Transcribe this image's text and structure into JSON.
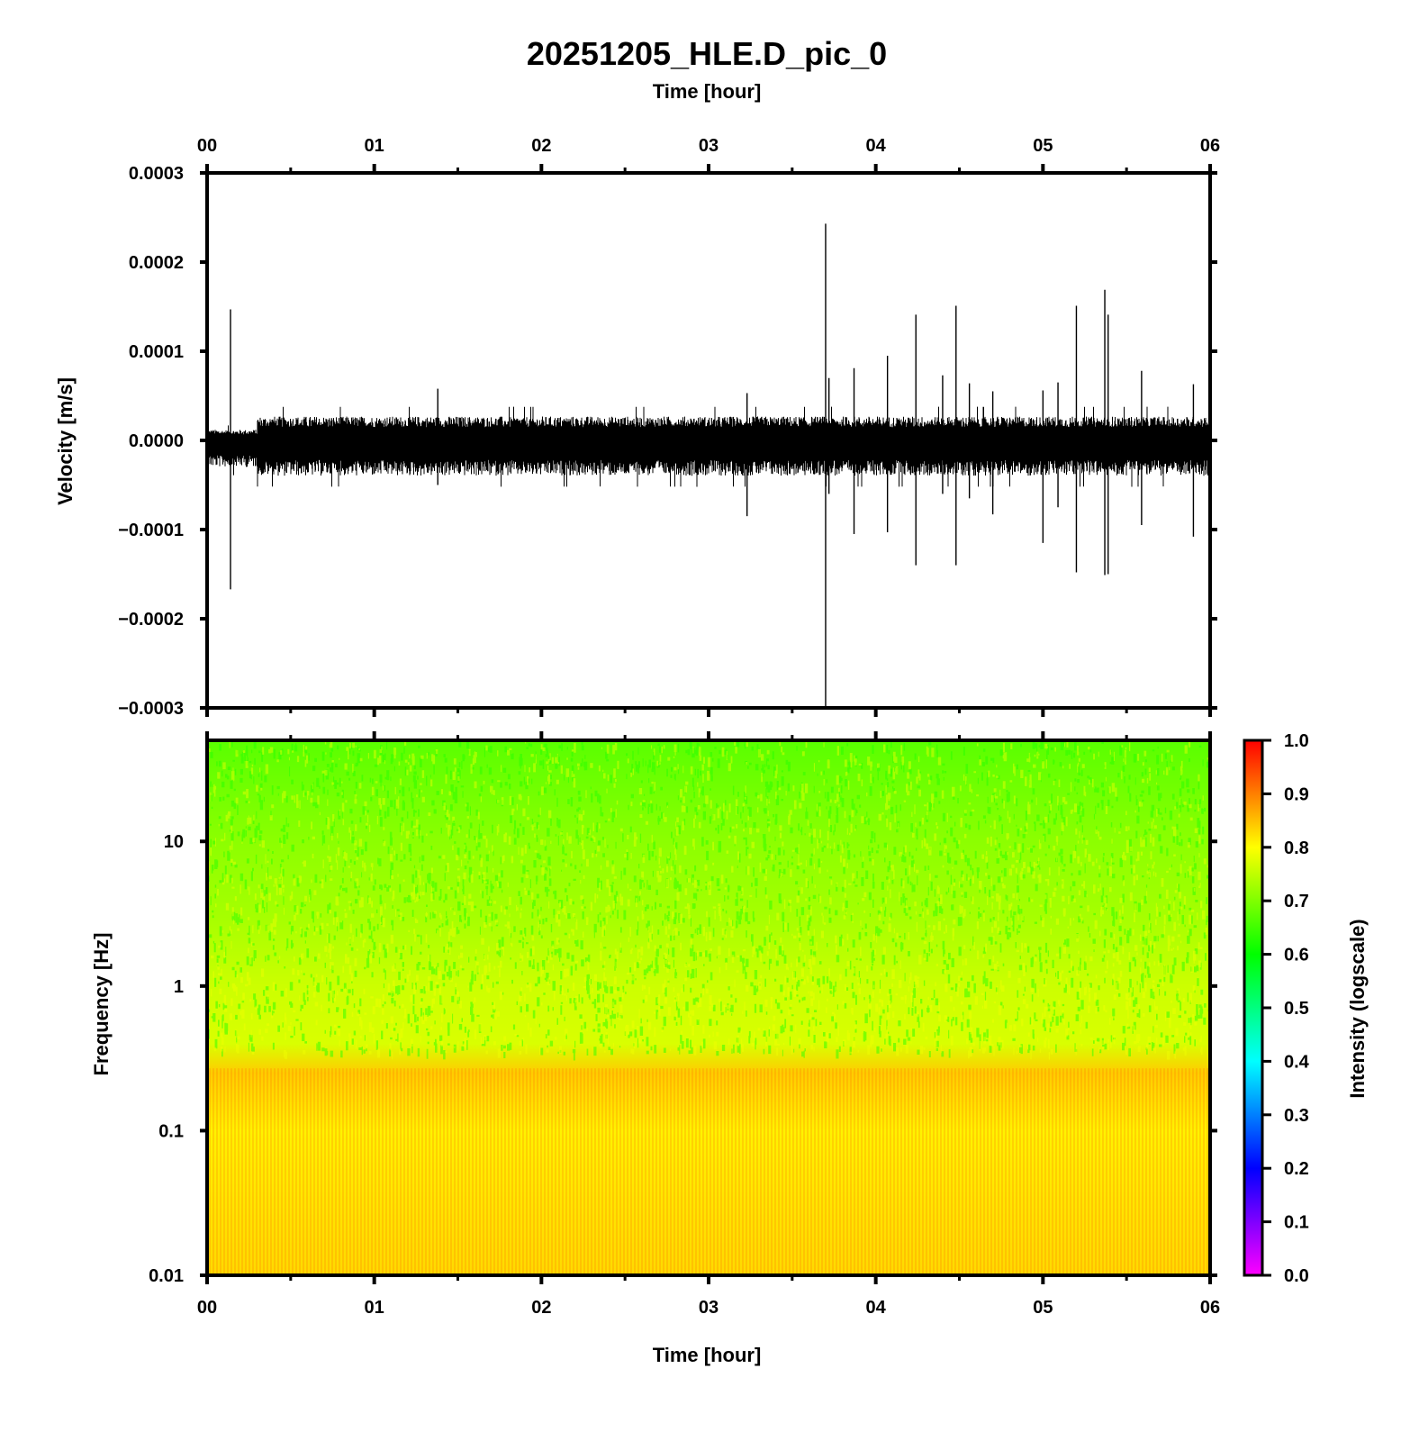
{
  "title": "20251205_HLE.D_pic_0",
  "colors": {
    "trace": "#000000",
    "frame": "#000000",
    "background": "#ffffff"
  },
  "chart_data": [
    {
      "type": "line",
      "panel": "seismogram",
      "xlabel_top": "Time [hour]",
      "ylabel": "Velocity [m/s]",
      "xlim": [
        0,
        6
      ],
      "ylim": [
        -0.0003,
        0.0003
      ],
      "x_ticks": [
        "00",
        "01",
        "02",
        "03",
        "04",
        "05",
        "06"
      ],
      "y_ticks": [
        "0.0003",
        "0.0002",
        "0.0001",
        "0.0000",
        "−0.0001",
        "−0.0002",
        "−0.0003"
      ],
      "y_tick_values": [
        0.0003,
        0.0002,
        0.0001,
        0.0,
        -0.0001,
        -0.0002,
        -0.0003
      ],
      "background_noise": [
        {
          "from": 0.0,
          "to": 0.3,
          "max": 1.2e-05,
          "min": -3e-05
        },
        {
          "from": 0.3,
          "to": 6.0,
          "max": 2.7e-05,
          "min": -4e-05
        }
      ],
      "spikes": [
        {
          "t": 0.14,
          "max": 0.000147,
          "min": -0.000167
        },
        {
          "t": 1.38,
          "max": 5.8e-05,
          "min": -5e-05
        },
        {
          "t": 3.23,
          "max": 5.3e-05,
          "min": -8.5e-05
        },
        {
          "t": 3.7,
          "max": 0.000243,
          "min": -0.0003
        },
        {
          "t": 3.72,
          "max": 7e-05,
          "min": -6e-05
        },
        {
          "t": 3.87,
          "max": 8.1e-05,
          "min": -0.000105
        },
        {
          "t": 4.07,
          "max": 9.5e-05,
          "min": -0.000103
        },
        {
          "t": 4.24,
          "max": 0.000141,
          "min": -0.00014
        },
        {
          "t": 4.4,
          "max": 7.3e-05,
          "min": -6e-05
        },
        {
          "t": 4.48,
          "max": 0.000151,
          "min": -0.00014
        },
        {
          "t": 4.56,
          "max": 6.4e-05,
          "min": -6.5e-05
        },
        {
          "t": 4.7,
          "max": 5.5e-05,
          "min": -8.3e-05
        },
        {
          "t": 5.0,
          "max": 5.6e-05,
          "min": -0.000115
        },
        {
          "t": 5.09,
          "max": 6.5e-05,
          "min": -7.5e-05
        },
        {
          "t": 5.2,
          "max": 0.000151,
          "min": -0.000148
        },
        {
          "t": 5.37,
          "max": 0.000169,
          "min": -0.000151
        },
        {
          "t": 5.39,
          "max": 0.000141,
          "min": -0.00015
        },
        {
          "t": 5.59,
          "max": 7.8e-05,
          "min": -9.5e-05
        },
        {
          "t": 5.9,
          "max": 6.3e-05,
          "min": -0.000108
        }
      ]
    },
    {
      "type": "heatmap",
      "panel": "spectrogram",
      "xlabel": "Time [hour]",
      "ylabel": "Frequency [Hz]",
      "xlim": [
        0,
        6
      ],
      "ylim": [
        0.01,
        50
      ],
      "y_scale": "log",
      "x_ticks": [
        "00",
        "01",
        "02",
        "03",
        "04",
        "05",
        "06"
      ],
      "y_ticks": [
        "10",
        "1",
        "0.1",
        "0.01"
      ],
      "y_tick_values": [
        10,
        1,
        0.1,
        0.01
      ],
      "colorbar": {
        "label": "Intensity (logscale)",
        "range": [
          0.0,
          1.0
        ],
        "ticks": [
          "1.0",
          "0.9",
          "0.8",
          "0.7",
          "0.6",
          "0.5",
          "0.4",
          "0.3",
          "0.2",
          "0.1",
          "0.0"
        ],
        "tick_values": [
          1.0,
          0.9,
          0.8,
          0.7,
          0.6,
          0.5,
          0.4,
          0.3,
          0.2,
          0.1,
          0.0
        ],
        "colors": [
          "#ff00ff",
          "#0000ff",
          "#00ffff",
          "#00ff00",
          "#ffff00",
          "#ff0000"
        ]
      },
      "intensity_profile": [
        {
          "freq": 50,
          "intensity": 0.67
        },
        {
          "freq": 10,
          "intensity": 0.71
        },
        {
          "freq": 3,
          "intensity": 0.73
        },
        {
          "freq": 1,
          "intensity": 0.76
        },
        {
          "freq": 0.4,
          "intensity": 0.77
        },
        {
          "freq": 0.25,
          "intensity": 0.84
        },
        {
          "freq": 0.1,
          "intensity": 0.81
        },
        {
          "freq": 0.01,
          "intensity": 0.83
        }
      ]
    }
  ]
}
